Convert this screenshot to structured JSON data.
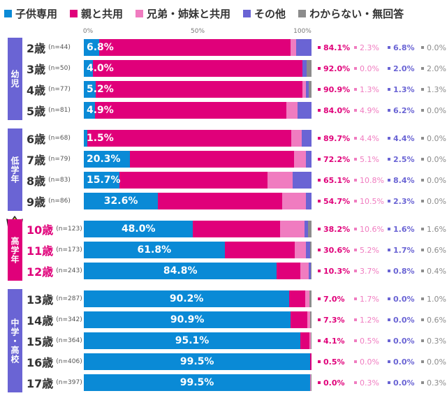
{
  "legend": [
    {
      "label": "子供専用",
      "color": "#0a8ad6"
    },
    {
      "label": "親と共用",
      "color": "#e0007a"
    },
    {
      "label": "兄弟・姉妹と共用",
      "color": "#f07cc0"
    },
    {
      "label": "その他",
      "color": "#6a64d4"
    },
    {
      "label": "わからない・無回答",
      "color": "#8c8c8c"
    }
  ],
  "chart_data": {
    "type": "bar",
    "orientation": "horizontal",
    "stacked": true,
    "xlim": [
      0,
      100
    ],
    "x_ticks": [
      "0%",
      "50%",
      "100%"
    ],
    "series_names": [
      "子供専用",
      "親と共用",
      "兄弟・姉妹と共用",
      "その他",
      "わからない・無回答"
    ],
    "groups": [
      {
        "label": "幼児",
        "color": "#6a64d4",
        "highlight": false,
        "rows": [
          {
            "age": "2歳",
            "n": "(n=44)",
            "values": [
              6.8,
              84.1,
              2.3,
              6.8,
              0.0
            ]
          },
          {
            "age": "3歳",
            "n": "(n=50)",
            "values": [
              4.0,
              92.0,
              0.0,
              2.0,
              2.0
            ]
          },
          {
            "age": "4歳",
            "n": "(n=77)",
            "values": [
              5.2,
              90.9,
              1.3,
              1.3,
              1.3
            ]
          },
          {
            "age": "5歳",
            "n": "(n=81)",
            "values": [
              4.9,
              84.0,
              4.9,
              6.2,
              0.0
            ]
          }
        ]
      },
      {
        "label": "低学年",
        "color": "#6a64d4",
        "highlight": false,
        "rows": [
          {
            "age": "6歳",
            "n": "(n=68)",
            "values": [
              1.5,
              89.7,
              4.4,
              4.4,
              0.0
            ]
          },
          {
            "age": "7歳",
            "n": "(n=79)",
            "values": [
              20.3,
              72.2,
              5.1,
              2.5,
              0.0
            ]
          },
          {
            "age": "8歳",
            "n": "(n=83)",
            "values": [
              15.7,
              65.1,
              10.8,
              8.4,
              0.0
            ]
          },
          {
            "age": "9歳",
            "n": "(n=86)",
            "values": [
              32.6,
              54.7,
              10.5,
              2.3,
              0.0
            ]
          }
        ]
      },
      {
        "label": "高学年",
        "color": "#e0007a",
        "highlight": true,
        "rows": [
          {
            "age": "10歳",
            "n": "(n=123)",
            "values": [
              48.0,
              38.2,
              10.6,
              1.6,
              1.6
            ]
          },
          {
            "age": "11歳",
            "n": "(n=173)",
            "values": [
              61.8,
              30.6,
              5.2,
              1.7,
              0.6
            ]
          },
          {
            "age": "12歳",
            "n": "(n=243)",
            "values": [
              84.8,
              10.3,
              3.7,
              0.8,
              0.4
            ]
          }
        ]
      },
      {
        "label": "中学・高校",
        "color": "#6a64d4",
        "highlight": false,
        "rows": [
          {
            "age": "13歳",
            "n": "(n=287)",
            "values": [
              90.2,
              7.0,
              1.7,
              0.0,
              1.0
            ]
          },
          {
            "age": "14歳",
            "n": "(n=342)",
            "values": [
              90.9,
              7.3,
              1.2,
              0.0,
              0.6
            ]
          },
          {
            "age": "15歳",
            "n": "(n=364)",
            "values": [
              95.1,
              4.1,
              0.5,
              0.0,
              0.3
            ]
          },
          {
            "age": "16歳",
            "n": "(n=406)",
            "values": [
              99.5,
              0.5,
              0.0,
              0.0,
              0.0
            ]
          },
          {
            "age": "17歳",
            "n": "(n=397)",
            "values": [
              99.5,
              0.0,
              0.3,
              0.0,
              0.3
            ]
          }
        ]
      }
    ]
  },
  "value_colors": [
    "#0a8ad6",
    "#e0007a",
    "#f07cc0",
    "#6a64d4",
    "#8c8c8c"
  ],
  "crown_icon": "crown-icon"
}
